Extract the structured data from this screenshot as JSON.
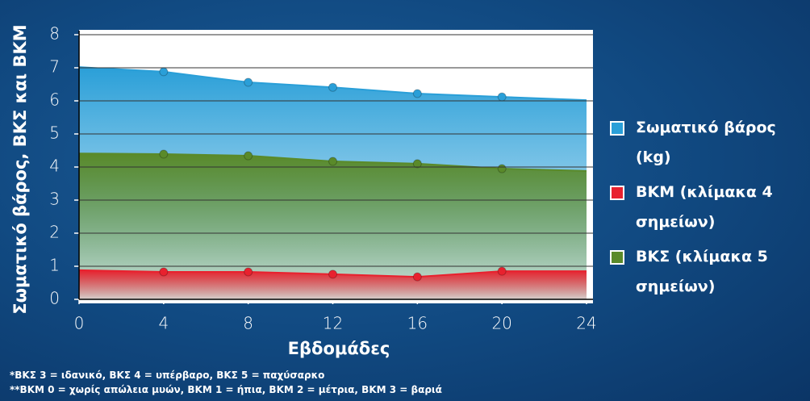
{
  "chart_data": {
    "type": "area",
    "ylabel": "Σωματικό βάρος, ΒΚΣ και ΒΚΜ",
    "xlabel": "Εβδομάδες",
    "x": [
      0,
      4,
      8,
      12,
      16,
      20,
      24
    ],
    "xlim": [
      0,
      24
    ],
    "xticks": [
      0,
      4,
      8,
      12,
      16,
      20,
      24
    ],
    "ylim": [
      0,
      8
    ],
    "yticks": [
      0,
      1,
      2,
      3,
      4,
      5,
      6,
      7,
      8
    ],
    "grid": true,
    "markers": [
      false,
      true,
      true,
      true,
      true,
      true,
      false
    ],
    "series": [
      {
        "name": "Σωματικό βάρος (kg)",
        "color": "#2a9fd8",
        "values": [
          7.02,
          6.88,
          6.56,
          6.41,
          6.22,
          6.12,
          6.02
        ]
      },
      {
        "name": "ΒΚΜ (κλίμακα 4 σημείων)",
        "color": "#e8212e",
        "values": [
          0.88,
          0.83,
          0.83,
          0.76,
          0.68,
          0.85,
          0.85
        ]
      },
      {
        "name": "ΒΚΣ (κλίμακα 5 σημείων)",
        "color": "#5a8a2a",
        "values": [
          4.41,
          4.39,
          4.34,
          4.17,
          4.1,
          3.95,
          3.88
        ]
      }
    ],
    "draw_order": [
      0,
      2,
      1
    ],
    "footnotes": [
      "*ΒΚΣ 3 = ιδανικό, ΒΚΣ 4 = υπέρβαρο, ΒΚΣ 5 = παχύσαρκο",
      "**ΒΚΜ 0 = χωρίς απώλεια μυών, ΒΚΜ 1 = ήπια, ΒΚΜ 2 = μέτρια, ΒΚΜ 3 = βαριά"
    ]
  }
}
